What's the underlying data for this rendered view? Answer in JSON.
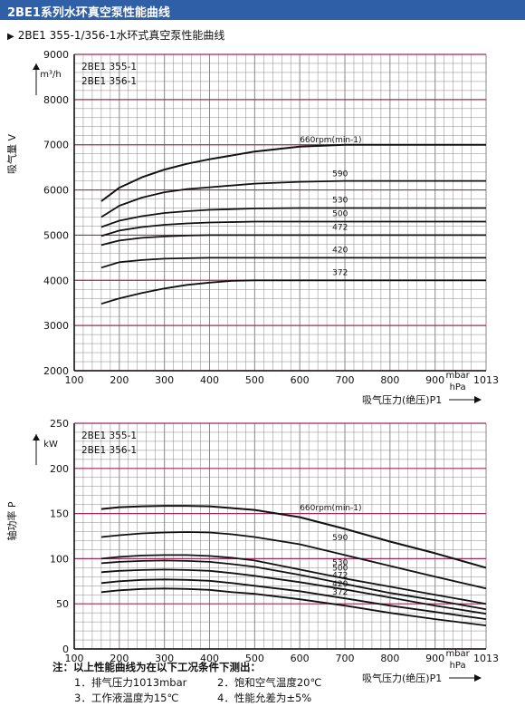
{
  "header": {
    "title": "2BE1系列水环真空泵性能曲线",
    "bg_color": "#2f5fa6"
  },
  "subtitle": "2BE1 355-1/356-1水环式真空泵性能曲线",
  "colors": {
    "grid_major": "#a0285a",
    "grid_minor": "#888888",
    "curve": "#111111"
  },
  "chart_data": [
    {
      "type": "line",
      "models": [
        "2BE1 355-1",
        "2BE1 356-1"
      ],
      "ylabel": "吸气量 V",
      "yunit": "m³/h",
      "xlabel": "吸气压力(绝压)P1",
      "xunit_top": "mbar",
      "xunit_bottom": "hPa",
      "x_ticks": [
        100,
        200,
        300,
        400,
        500,
        600,
        700,
        800,
        900,
        1013
      ],
      "y_ticks": [
        2000,
        3000,
        4000,
        5000,
        6000,
        7000,
        8000,
        9000
      ],
      "xlim": [
        100,
        1013
      ],
      "ylim": [
        2000,
        9000
      ],
      "series": [
        {
          "name": "660rpm(min-1)",
          "x": [
            160,
            200,
            250,
            300,
            350,
            400,
            500,
            600,
            700,
            800,
            900,
            1013
          ],
          "y": [
            5750,
            6050,
            6280,
            6450,
            6580,
            6680,
            6850,
            6960,
            7000,
            7000,
            7000,
            7000
          ]
        },
        {
          "name": "590",
          "x": [
            160,
            200,
            250,
            300,
            350,
            400,
            500,
            600,
            700,
            800,
            900,
            1013
          ],
          "y": [
            5400,
            5650,
            5830,
            5950,
            6020,
            6060,
            6140,
            6180,
            6200,
            6200,
            6200,
            6200
          ]
        },
        {
          "name": "530",
          "x": [
            160,
            200,
            250,
            300,
            350,
            400,
            500,
            600,
            700,
            800,
            900,
            1013
          ],
          "y": [
            5180,
            5320,
            5420,
            5490,
            5530,
            5560,
            5590,
            5600,
            5600,
            5600,
            5600,
            5600
          ]
        },
        {
          "name": "500",
          "x": [
            160,
            200,
            250,
            300,
            350,
            400,
            500,
            600,
            700,
            800,
            900,
            1013
          ],
          "y": [
            4980,
            5100,
            5180,
            5230,
            5260,
            5280,
            5300,
            5300,
            5300,
            5300,
            5300,
            5300
          ]
        },
        {
          "name": "472",
          "x": [
            160,
            200,
            250,
            300,
            350,
            400,
            500,
            600,
            700,
            800,
            900,
            1013
          ],
          "y": [
            4780,
            4880,
            4940,
            4970,
            4990,
            5000,
            5000,
            5000,
            5000,
            5000,
            5000,
            5000
          ]
        },
        {
          "name": "420",
          "x": [
            160,
            200,
            250,
            300,
            350,
            400,
            500,
            600,
            700,
            800,
            900,
            1013
          ],
          "y": [
            4280,
            4400,
            4450,
            4480,
            4490,
            4500,
            4500,
            4500,
            4500,
            4500,
            4500,
            4500
          ]
        },
        {
          "name": "372",
          "x": [
            160,
            200,
            250,
            300,
            350,
            400,
            450,
            500,
            600,
            700,
            800,
            900,
            1013
          ],
          "y": [
            3480,
            3600,
            3720,
            3820,
            3900,
            3950,
            3990,
            4000,
            4000,
            4000,
            4000,
            4000,
            4000
          ]
        }
      ]
    },
    {
      "type": "line",
      "models": [
        "2BE1 355-1",
        "2BE1 356-1"
      ],
      "ylabel": "轴功率 P",
      "yunit": "kW",
      "xlabel": "吸气压力(绝压)P1",
      "xunit_top": "mbar",
      "xunit_bottom": "hPa",
      "x_ticks": [
        100,
        200,
        300,
        400,
        500,
        600,
        700,
        800,
        900,
        1013
      ],
      "y_ticks": [
        0,
        50,
        100,
        150,
        200,
        250
      ],
      "xlim": [
        100,
        1013
      ],
      "ylim": [
        0,
        250
      ],
      "series": [
        {
          "name": "660rpm(min-1)",
          "x": [
            160,
            200,
            250,
            300,
            350,
            400,
            450,
            500,
            600,
            700,
            800,
            900,
            1013
          ],
          "y": [
            155,
            157,
            158,
            158.5,
            158.5,
            158,
            156,
            154,
            146,
            133,
            119,
            106,
            90
          ]
        },
        {
          "name": "590",
          "x": [
            160,
            200,
            250,
            300,
            350,
            400,
            450,
            500,
            600,
            700,
            800,
            900,
            1013
          ],
          "y": [
            124,
            126,
            128,
            129,
            129.5,
            129,
            127,
            124,
            116,
            104,
            92,
            80,
            67
          ]
        },
        {
          "name": "530",
          "x": [
            160,
            200,
            250,
            300,
            350,
            400,
            450,
            500,
            600,
            700,
            800,
            900,
            1013
          ],
          "y": [
            100,
            102,
            103.5,
            104,
            104,
            103,
            101,
            98,
            88,
            78,
            69,
            60,
            50
          ]
        },
        {
          "name": "500",
          "x": [
            160,
            200,
            250,
            300,
            350,
            400,
            450,
            500,
            600,
            700,
            800,
            900,
            1013
          ],
          "y": [
            95,
            96.5,
            97.5,
            98,
            97.5,
            96.5,
            94,
            91,
            82,
            72,
            62,
            54,
            44
          ]
        },
        {
          "name": "472",
          "x": [
            160,
            200,
            250,
            300,
            350,
            400,
            450,
            500,
            600,
            700,
            800,
            900,
            1013
          ],
          "y": [
            85,
            86.5,
            87.5,
            88,
            87.5,
            86.5,
            84,
            81,
            74,
            66,
            57,
            48,
            39
          ]
        },
        {
          "name": "420",
          "x": [
            160,
            200,
            250,
            300,
            350,
            400,
            450,
            500,
            600,
            700,
            800,
            900,
            1013
          ],
          "y": [
            73,
            75,
            76.5,
            77,
            76.5,
            75.5,
            73,
            70,
            64,
            56,
            48,
            41,
            33
          ]
        },
        {
          "name": "372",
          "x": [
            160,
            200,
            250,
            300,
            350,
            400,
            450,
            500,
            600,
            700,
            800,
            900,
            1013
          ],
          "y": [
            63,
            65,
            66.5,
            67,
            66.5,
            65.5,
            63,
            61,
            55,
            48,
            40,
            33,
            26
          ]
        }
      ]
    }
  ],
  "notes": {
    "heading": "注：以上性能曲线为在以下工况条件下测出：",
    "items": [
      "1．排气压力1013mbar",
      "2．饱和空气温度20℃",
      "3．工作液温度为15℃",
      "4．性能允差为±5%"
    ]
  }
}
